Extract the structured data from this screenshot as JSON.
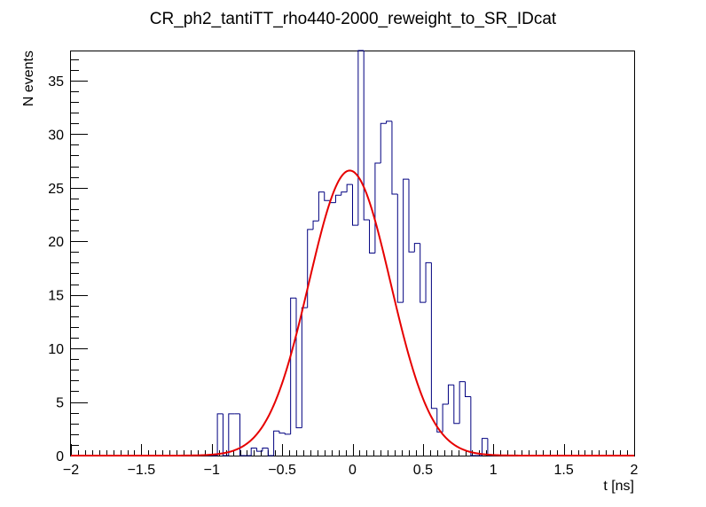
{
  "chart_data": {
    "type": "histogram",
    "title": "CR_ph2_tantiTT_rho440-2000_reweight_to_SR_IDcat",
    "xlabel": "t [ns]",
    "ylabel": "N events",
    "xlim": [
      -2,
      2
    ],
    "ylim": [
      0,
      37.8
    ],
    "grid": false,
    "xticks": [
      -2,
      -1.5,
      -1,
      -0.5,
      0,
      0.5,
      1,
      1.5,
      2
    ],
    "xtick_labels": [
      "−2",
      "−1.5",
      "−1",
      "−0.5",
      "0",
      "0.5",
      "1",
      "1.5",
      "2"
    ],
    "yticks": [
      0,
      5,
      10,
      15,
      20,
      25,
      30,
      35
    ],
    "ytick_labels": [
      "0",
      "5",
      "10",
      "15",
      "20",
      "25",
      "30",
      "35"
    ],
    "bin_width": 0.04,
    "series": [
      {
        "kind": "histogram",
        "color": "#000080",
        "x_low": [
          -1.0,
          -0.96,
          -0.92,
          -0.88,
          -0.84,
          -0.8,
          -0.76,
          -0.72,
          -0.68,
          -0.64,
          -0.6,
          -0.56,
          -0.52,
          -0.48,
          -0.44,
          -0.4,
          -0.36,
          -0.32,
          -0.28,
          -0.24,
          -0.2,
          -0.16,
          -0.12,
          -0.08,
          -0.04,
          0.0,
          0.04,
          0.08,
          0.12,
          0.16,
          0.2,
          0.24,
          0.28,
          0.32,
          0.36,
          0.4,
          0.44,
          0.48,
          0.52,
          0.56,
          0.6,
          0.64,
          0.68,
          0.72,
          0.76,
          0.8,
          0.84,
          0.88,
          0.92
        ],
        "values": [
          0,
          3.9,
          0,
          3.9,
          3.9,
          0,
          0,
          0.7,
          0.4,
          0.7,
          0,
          2.3,
          2.1,
          2.0,
          14.7,
          2.6,
          13.8,
          21.1,
          21.9,
          24.6,
          23.8,
          23.6,
          24.3,
          24.6,
          25.3,
          21.5,
          37.8,
          22.0,
          18.9,
          27.3,
          31.0,
          31.2,
          24.4,
          14.3,
          25.8,
          19.0,
          19.8,
          14.3,
          18.0,
          4.4,
          2.2,
          4.8,
          6.6,
          3.0,
          6.9,
          5.5,
          0,
          0,
          1.6
        ]
      },
      {
        "kind": "fit",
        "color": "#e60000",
        "function": "gaus",
        "constant": 26.6,
        "mean": -0.02,
        "sigma": 0.29
      }
    ]
  }
}
